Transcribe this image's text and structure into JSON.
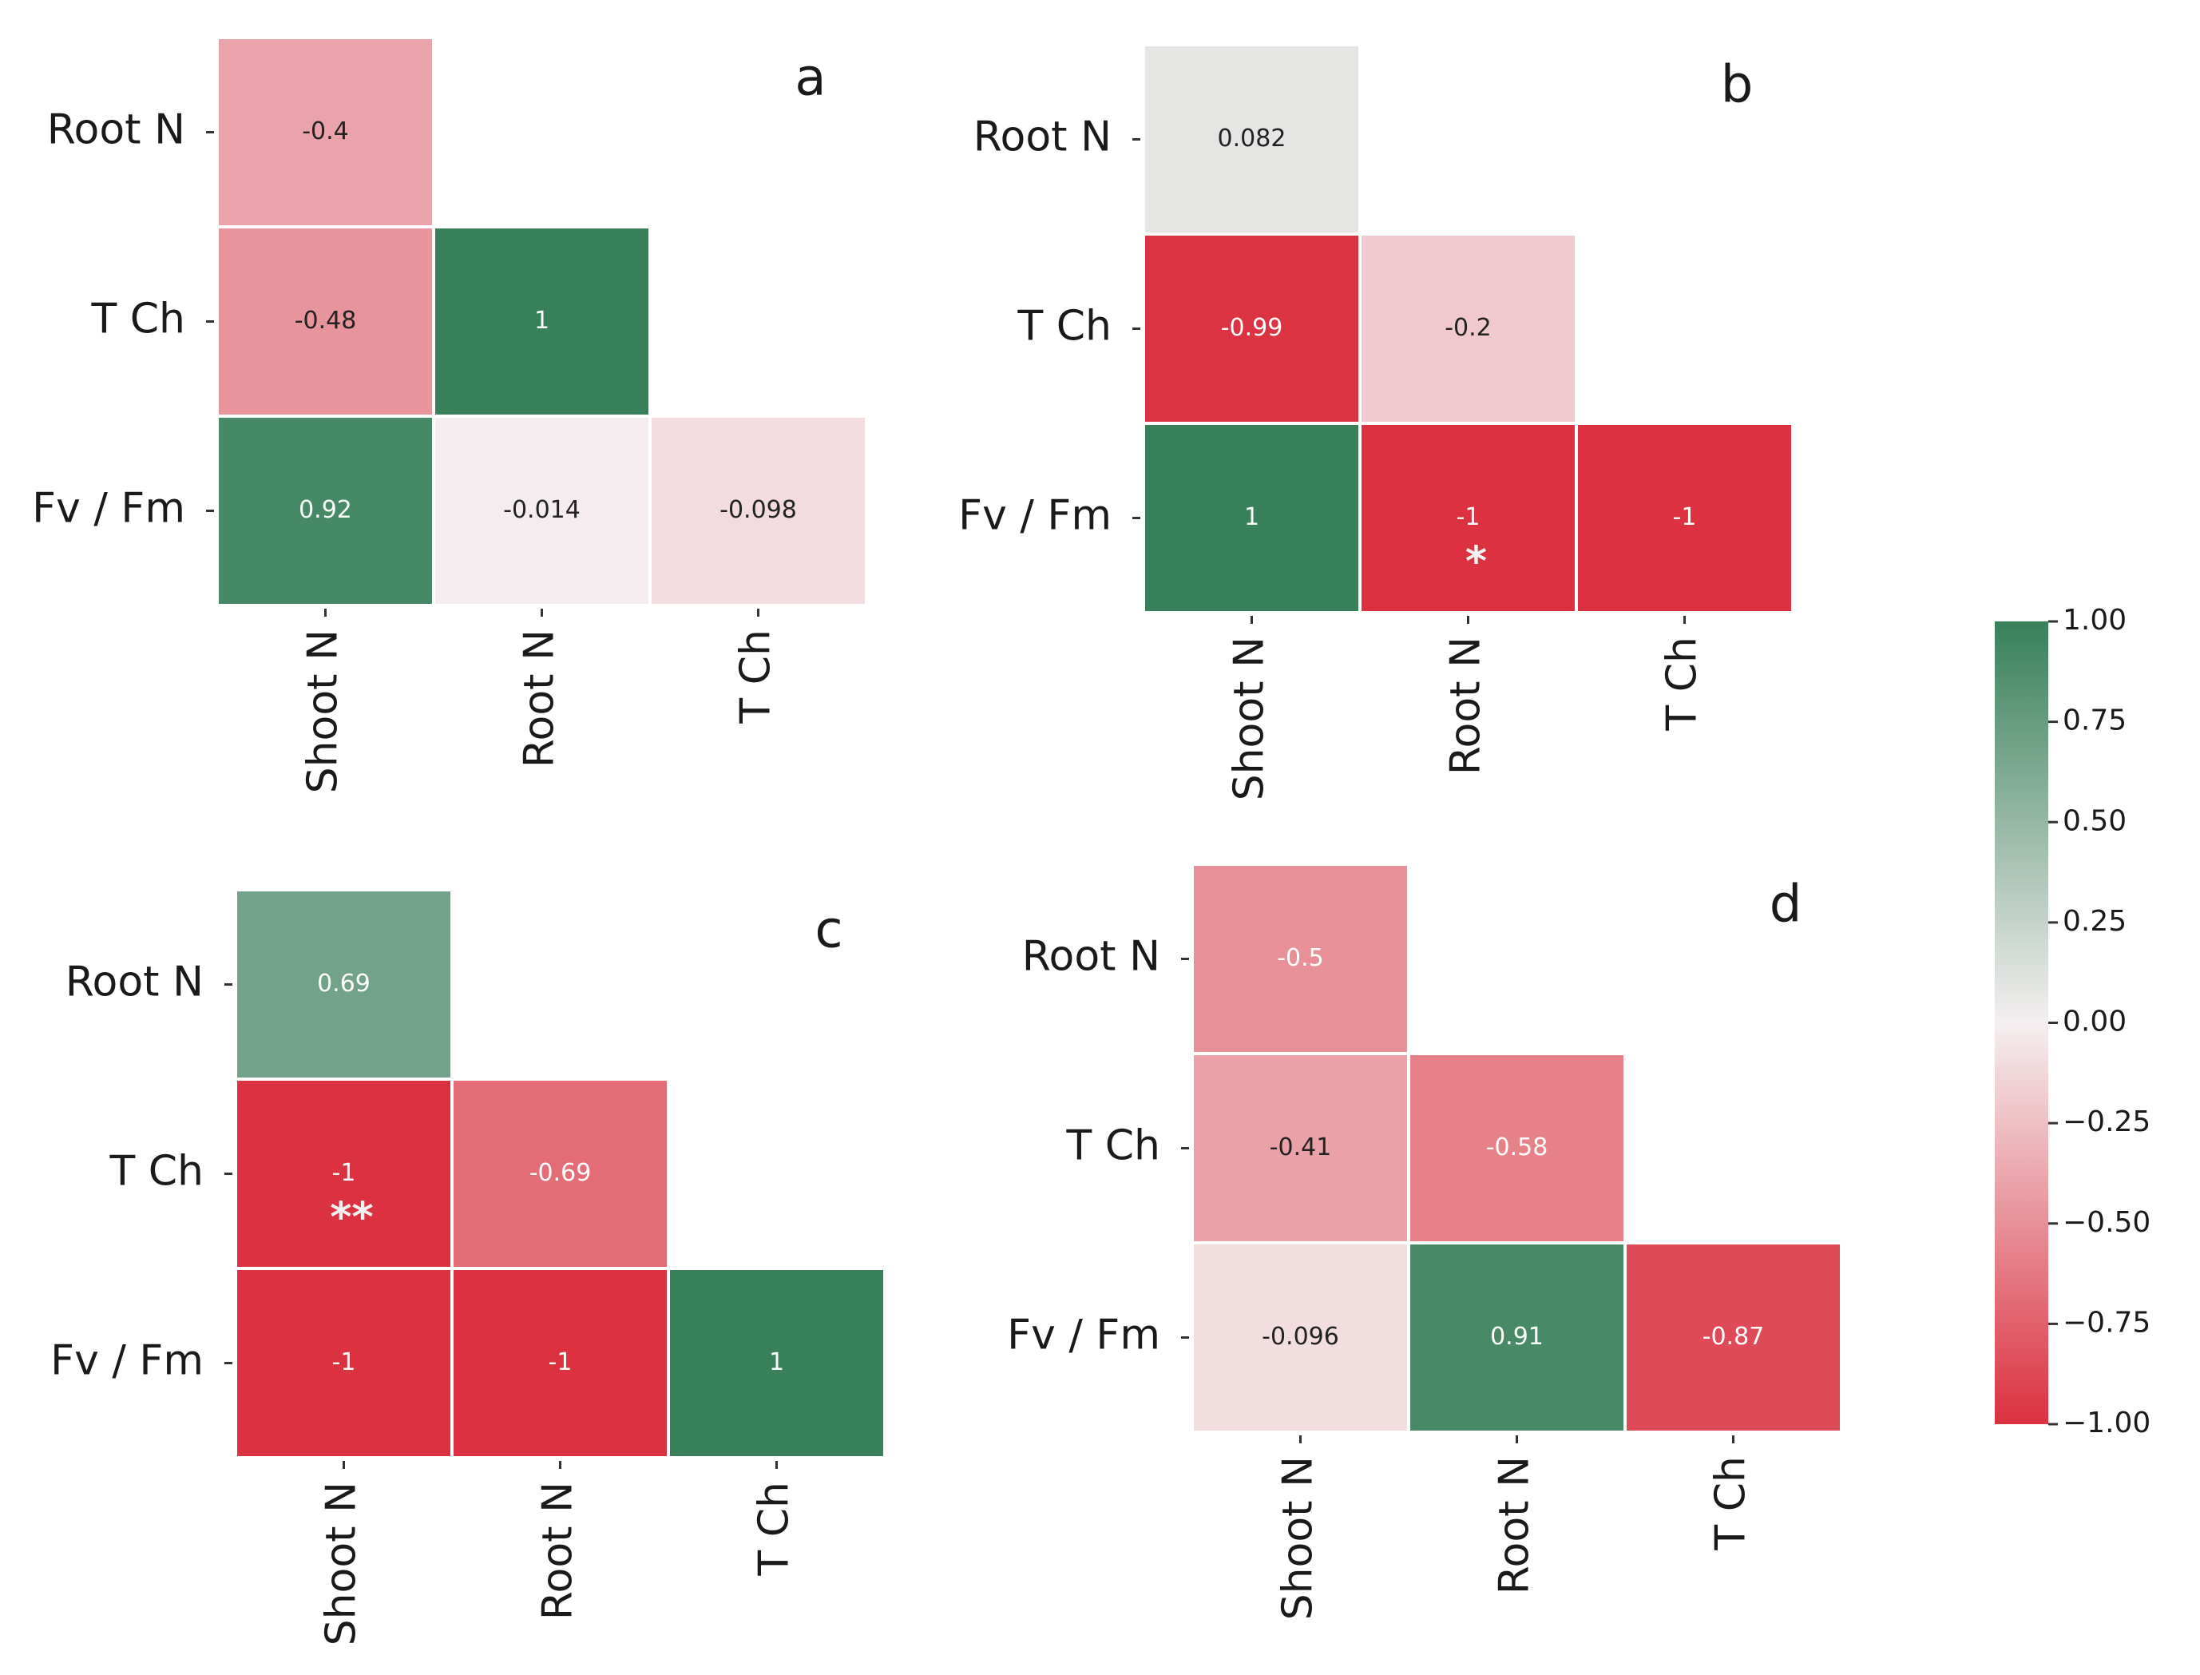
{
  "chart_data": [
    {
      "type": "heatmap",
      "label": "a",
      "rows": [
        "Root N",
        "T Ch",
        "Fv / Fm"
      ],
      "columns": [
        "Shoot N",
        "Root N",
        "T Ch"
      ],
      "values": [
        [
          -0.4,
          null,
          null
        ],
        [
          -0.48,
          1,
          null
        ],
        [
          0.92,
          -0.014,
          -0.098
        ]
      ],
      "significance": [
        [
          null,
          null,
          null
        ],
        [
          null,
          null,
          null
        ],
        [
          null,
          null,
          null
        ]
      ]
    },
    {
      "type": "heatmap",
      "label": "b",
      "rows": [
        "Root N",
        "T Ch",
        "Fv / Fm"
      ],
      "columns": [
        "Shoot N",
        "Root N",
        "T Ch"
      ],
      "values": [
        [
          0.082,
          null,
          null
        ],
        [
          -0.99,
          -0.2,
          null
        ],
        [
          1,
          -1,
          -1
        ]
      ],
      "significance": [
        [
          null,
          null,
          null
        ],
        [
          null,
          null,
          null
        ],
        [
          null,
          "*",
          null
        ]
      ]
    },
    {
      "type": "heatmap",
      "label": "c",
      "rows": [
        "Root N",
        "T Ch",
        "Fv / Fm"
      ],
      "columns": [
        "Shoot N",
        "Root N",
        "T Ch"
      ],
      "values": [
        [
          0.69,
          null,
          null
        ],
        [
          -1,
          -0.69,
          null
        ],
        [
          -1,
          -1,
          1
        ]
      ],
      "significance": [
        [
          null,
          null,
          null
        ],
        [
          "**",
          null,
          null
        ],
        [
          null,
          null,
          null
        ]
      ]
    },
    {
      "type": "heatmap",
      "label": "d",
      "rows": [
        "Root N",
        "T Ch",
        "Fv / Fm"
      ],
      "columns": [
        "Shoot N",
        "Root N",
        "T Ch"
      ],
      "values": [
        [
          -0.5,
          null,
          null
        ],
        [
          -0.41,
          -0.58,
          null
        ],
        [
          -0.096,
          0.91,
          -0.87
        ]
      ],
      "significance": [
        [
          null,
          null,
          null
        ],
        [
          null,
          null,
          null
        ],
        [
          null,
          null,
          null
        ]
      ]
    }
  ],
  "colorbar": {
    "lim": [
      -1,
      1
    ],
    "colors": [
      "#db3140",
      "#f4eff0",
      "#37805a"
    ],
    "ticks": [
      {
        "value": 1,
        "label": "1.00"
      },
      {
        "value": 0.75,
        "label": "0.75"
      },
      {
        "value": 0.5,
        "label": "0.50"
      },
      {
        "value": 0.25,
        "label": "0.25"
      },
      {
        "value": 0,
        "label": "0.00"
      },
      {
        "value": -0.25,
        "label": "−0.25"
      },
      {
        "value": -0.5,
        "label": "−0.50"
      },
      {
        "value": -0.75,
        "label": "−0.75"
      },
      {
        "value": -1,
        "label": "−1.00"
      }
    ]
  }
}
